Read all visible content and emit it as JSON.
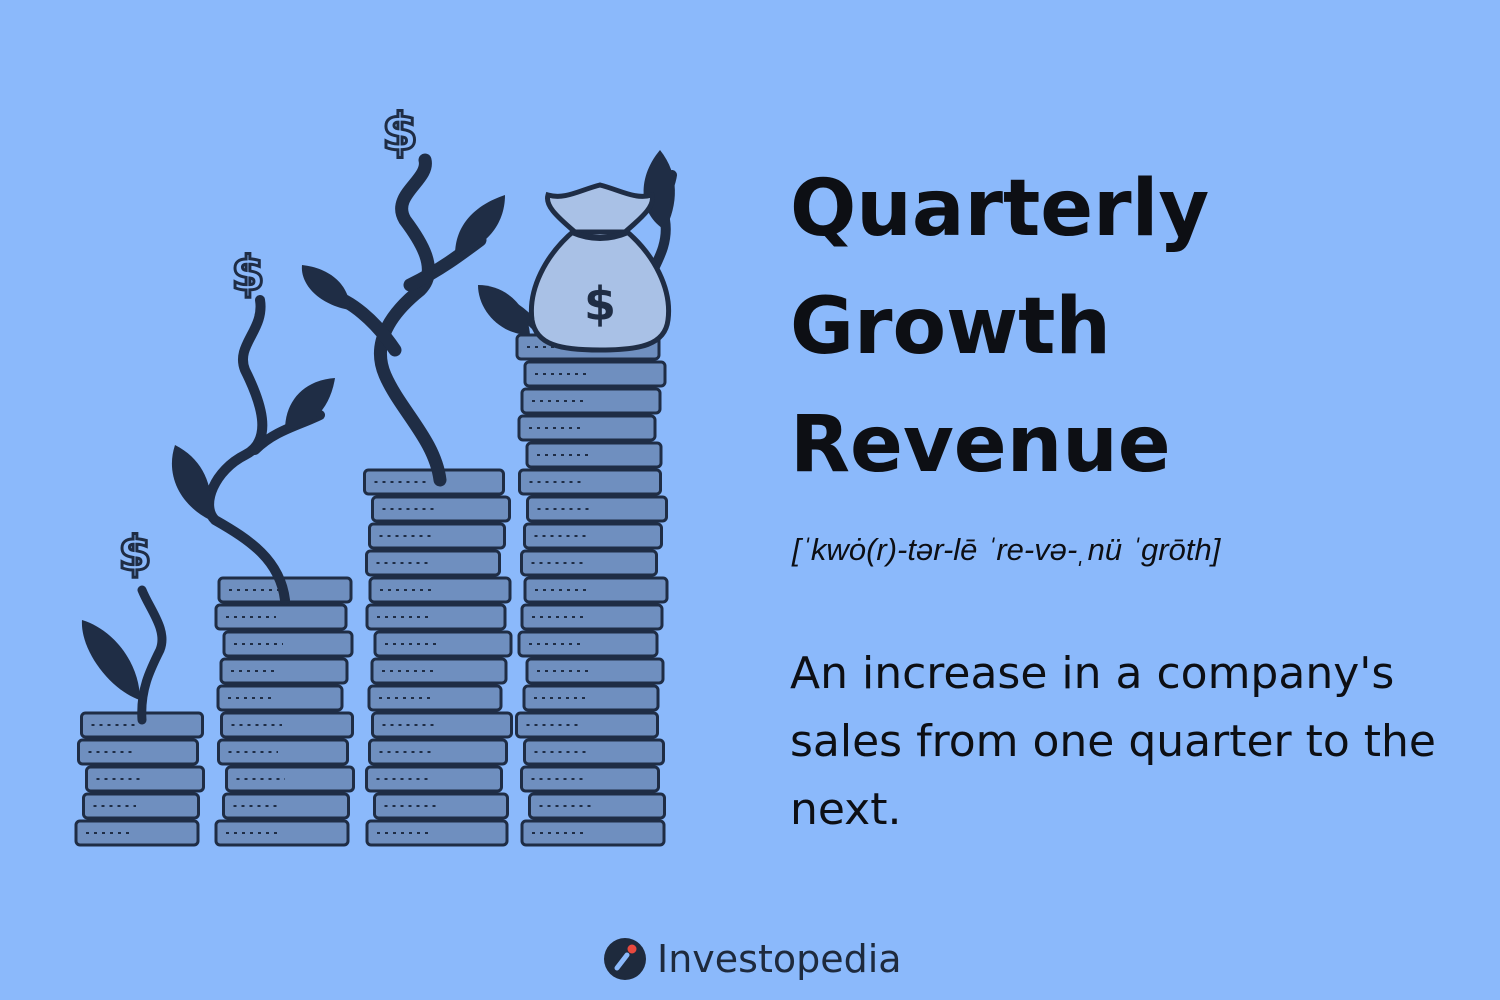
{
  "content": {
    "title": "Quarterly\nGrowth\nRevenue",
    "pronunciation": "[ˈkwȯ(r)-tər-lē ˈre-və-ˌnü ˈgrōth]",
    "definition": "An increase in a company's sales from one quarter to the next."
  },
  "brand": {
    "name": "Investopedia",
    "icon": "investopedia-logo-icon"
  },
  "illustration": {
    "description_icon": "coin-stacks-with-dollar-plants",
    "coin_stacks": [
      5,
      10,
      14,
      19
    ],
    "colors": {
      "background": "#8bb9fb",
      "coin_fill": "#6f8fbf",
      "coin_stroke": "#1f2d45",
      "plant": "#1f2d45",
      "bag": "#a9c1e6"
    }
  }
}
